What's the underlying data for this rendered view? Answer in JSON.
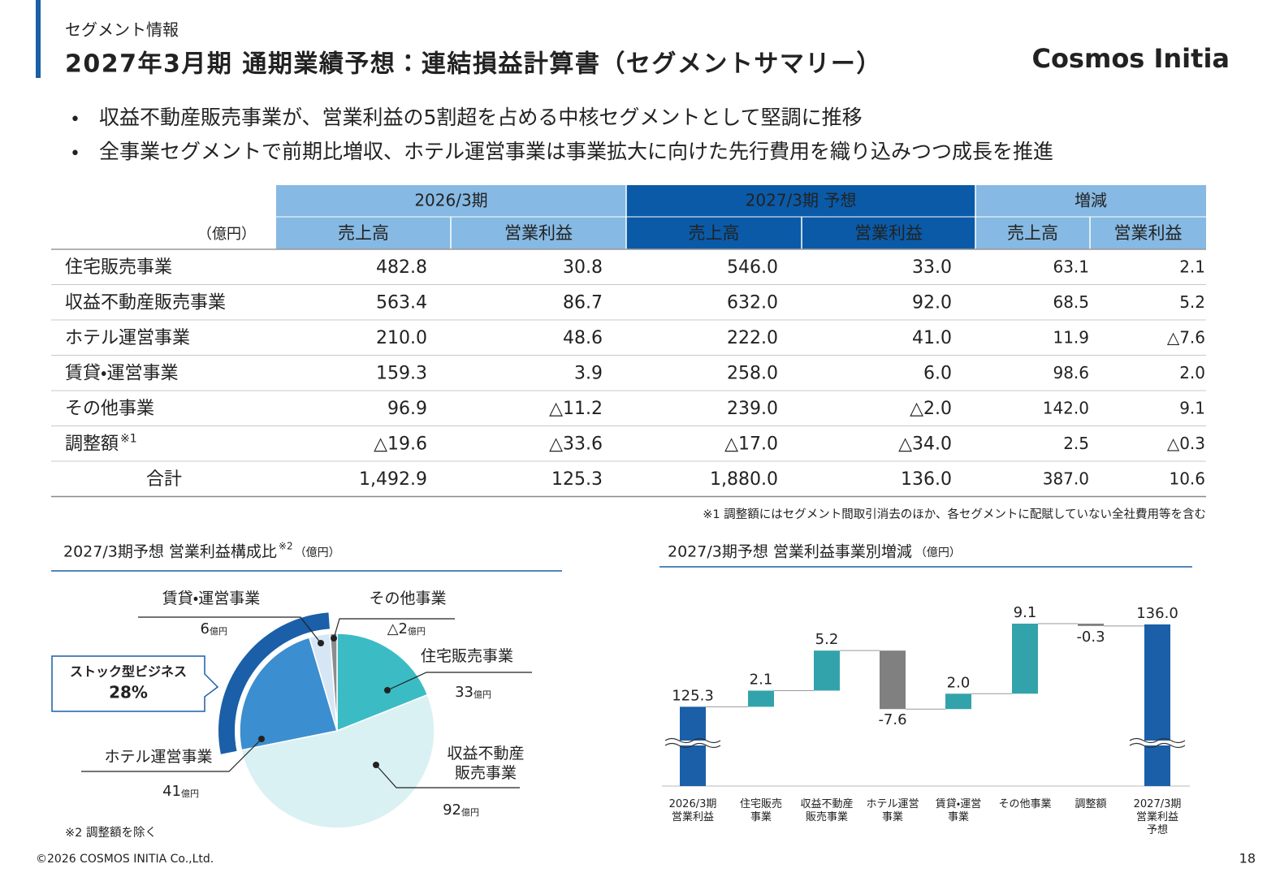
{
  "header": {
    "section": "セグメント情報",
    "title": "2027年3月期 通期業績予想：連結損益計算書（セグメントサマリー）",
    "logo": "Cosmos Initia"
  },
  "bullets": [
    "収益不動産販売事業が、営業利益の5割超を占める中核セグメントとして堅調に推移",
    "全事業セグメントで前期比増収、ホテル運営事業は事業拡大に向けた先行費用を織り込みつつ成長を推進"
  ],
  "table": {
    "unit": "（億円）",
    "groups": [
      "2026/3期",
      "2027/3期 予想",
      "増減"
    ],
    "group_colors": [
      "#86b9e3",
      "#0a5aa8",
      "#86b9e3"
    ],
    "columns": [
      "売上高",
      "営業利益",
      "売上高",
      "営業利益",
      "売上高",
      "営業利益"
    ],
    "value_colors": [
      "#222222",
      "#222222",
      "#1560b0",
      "#1560b0",
      "#222222",
      "#222222"
    ],
    "rows": [
      {
        "label": "住宅販売事業",
        "cells": [
          "482.8",
          "30.8",
          "546.0",
          "33.0",
          "63.1",
          "2.1"
        ]
      },
      {
        "label": "収益不動産販売事業",
        "cells": [
          "563.4",
          "86.7",
          "632.0",
          "92.0",
          "68.5",
          "5.2"
        ]
      },
      {
        "label": "ホテル運営事業",
        "cells": [
          "210.0",
          "48.6",
          "222.0",
          "41.0",
          "11.9",
          "△7.6"
        ]
      },
      {
        "label": "賃貸・運営事業",
        "cells": [
          "159.3",
          "3.9",
          "258.0",
          "6.0",
          "98.6",
          "2.0"
        ]
      },
      {
        "label": "その他事業",
        "cells": [
          "96.9",
          "△11.2",
          "239.0",
          "△2.0",
          "142.0",
          "9.1"
        ]
      },
      {
        "label": "調整額",
        "note": "※1",
        "cells": [
          "△19.6",
          "△33.6",
          "△17.0",
          "△34.0",
          "2.5",
          "△0.3"
        ]
      }
    ],
    "total": {
      "label": "合計",
      "cells": [
        "1,492.9",
        "125.3",
        "1,880.0",
        "136.0",
        "387.0",
        "10.6"
      ]
    },
    "note": "※1 調整額にはセグメント間取引消去のほか、各セグメントに配賦していない全社費用等を含む"
  },
  "chart_data": [
    {
      "type": "pie",
      "title": "2027/3期予想 営業利益構成比",
      "title_note": "※2",
      "unit": "（億円）",
      "categories": [
        "住宅販売事業",
        "収益不動産\n販売事業",
        "ホテル運営事業",
        "賃貸・運営事業",
        "その他事業"
      ],
      "values": [
        33,
        92,
        41,
        6,
        -2
      ],
      "value_labels": [
        "33",
        "92",
        "41",
        "6",
        "△2"
      ],
      "value_unit": "億円",
      "colors": [
        "#3bbcc4",
        "#daf1f3",
        "#3b8ed0",
        "#d6e6f5",
        "#8c8c8c"
      ],
      "ring_color": "#1a5fa8",
      "callout": {
        "label": "ストック型ビジネス",
        "value": "28%"
      },
      "note": "※2 調整額を除く"
    },
    {
      "type": "waterfall",
      "title": "2027/3期予想 営業利益事業別増減",
      "unit": "（億円）",
      "categories": [
        "2026/3期\n営業利益",
        "住宅販売\n事業",
        "収益不動産\n販売事業",
        "ホテル運営\n事業",
        "賃貸・運営\n事業",
        "その他事業",
        "調整額",
        "2027/3期\n営業利益\n予想"
      ],
      "values": [
        125.3,
        2.1,
        5.2,
        -7.6,
        2.0,
        9.1,
        -0.3,
        136.0
      ],
      "value_labels": [
        "125.3",
        "2.1",
        "5.2",
        "-7.6",
        "2.0",
        "9.1",
        "-0.3",
        "136.0"
      ],
      "colors": [
        "#1a5fa8",
        "#33a3ab",
        "#33a3ab",
        "#808080",
        "#33a3ab",
        "#33a3ab",
        "#808080",
        "#1a5fa8"
      ],
      "ylim": [
        115,
        138
      ]
    }
  ],
  "footer": {
    "copyright": "©2026 COSMOS INITIA Co.,Ltd.",
    "page": "18"
  }
}
